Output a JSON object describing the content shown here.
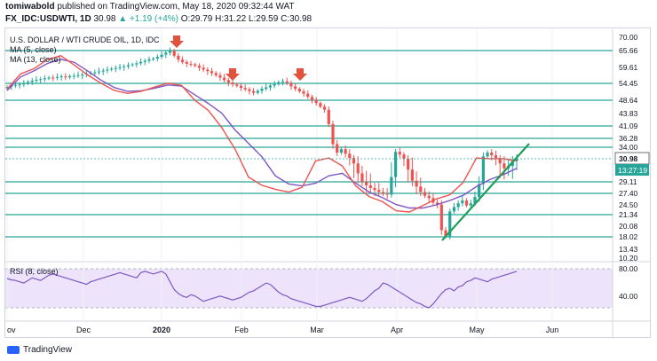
{
  "header": {
    "author": "tomiwabold",
    "published_text": "published on TradingView.com, May 18, 2020 09:32:44 WAT",
    "symbol": "FX_IDC:USDWTI, 1D",
    "last": "30.98",
    "change": "▲ +1.19 (+4%)",
    "ohlc": "O:29.79 H:31.22 L:29.59 C:30.98"
  },
  "legend": {
    "title": "U.S. DOLLAR / WTI CRUDE OIL, 1D, IDC",
    "ma5": "MA (5, close)",
    "ma13": "MA (13, close)",
    "rsi": "RSI (8, close)"
  },
  "footer": {
    "brand": "TradingView"
  },
  "colors": {
    "up": "#26a69a",
    "down": "#ef5350",
    "ma5": "#ef5350",
    "ma13": "#7e57c2",
    "level": "#4db6ac",
    "trend": "#1f9e5a",
    "arrow": "#e0533d",
    "rsi_fill": "#ede4fb",
    "rsi_line": "#7e57c2"
  },
  "chart_data": {
    "type": "candlestick",
    "price_axis_ticks": [
      "70.00",
      "65.66",
      "59.61",
      "54.45",
      "48.64",
      "43.83",
      "41.09",
      "36.28",
      "34.00",
      "30.98",
      "29.11",
      "27.40",
      "24.50",
      "21.34",
      "20.08",
      "18.02",
      "13.43",
      "10.20"
    ],
    "last_price_label": "30.98",
    "countdown_label": "13:27:19",
    "x_tick_labels": [
      "ov",
      "Dec",
      "2020",
      "Feb",
      "Mar",
      "Apr",
      "May",
      "Jun"
    ],
    "horizontal_levels": [
      65.66,
      54.45,
      48.64,
      41.09,
      36.28,
      34.0,
      29.11,
      27.4,
      21.34,
      18.02
    ],
    "rsi_ticks": [
      "80.00",
      "40.00"
    ],
    "approx_close_series": [
      53.2,
      53.6,
      53.9,
      54.1,
      54.5,
      54.9,
      55.3,
      55.6,
      55.8,
      56.1,
      56.3,
      56.2,
      56.5,
      56.7,
      56.4,
      56.8,
      56.9,
      57.1,
      57.3,
      57.6,
      57.9,
      58.0,
      58.3,
      58.6,
      58.9,
      59.2,
      59.4,
      59.7,
      60.0,
      60.4,
      60.7,
      61.1,
      61.6,
      62.0,
      62.5,
      62.8,
      63.4,
      64.2,
      64.9,
      65.6,
      63.8,
      62.4,
      61.5,
      60.9,
      60.7,
      60.2,
      59.5,
      58.9,
      58.4,
      57.8,
      57.1,
      56.3,
      55.5,
      54.7,
      54.1,
      53.6,
      52.9,
      52.4,
      51.8,
      51.2,
      51.9,
      52.6,
      53.1,
      53.7,
      54.2,
      54.8,
      55.1,
      54.6,
      53.4,
      52.6,
      51.7,
      50.9,
      49.8,
      48.7,
      47.6,
      46.3,
      45.2,
      41.5,
      34.8,
      32.6,
      33.5,
      32.3,
      31.2,
      30.6,
      29.8,
      29.1,
      28.6,
      28.2,
      27.9,
      27.6,
      27.3,
      27.1,
      29.5,
      32.8,
      32.1,
      31.0,
      30.1,
      29.2,
      28.4,
      27.6,
      26.8,
      26.2,
      25.1,
      24.6,
      19.3,
      18.1,
      22.4,
      23.8,
      24.9,
      25.6,
      24.3,
      24.9,
      26.5,
      28.8,
      31.6,
      32.6,
      31.9,
      31.2,
      30.6,
      30.2,
      30.4,
      30.8,
      30.98
    ],
    "rsi_approx": [
      65,
      63,
      62,
      60,
      58,
      62,
      66,
      64,
      62,
      66,
      70,
      72,
      70,
      68,
      66,
      64,
      62,
      60,
      58,
      56,
      60,
      62,
      64,
      66,
      68,
      70,
      72,
      74,
      72,
      70,
      68,
      66,
      74,
      76,
      74,
      72,
      74,
      76,
      72,
      60,
      48,
      42,
      38,
      36,
      40,
      38,
      34,
      30,
      32,
      34,
      36,
      38,
      36,
      34,
      32,
      34,
      36,
      40,
      44,
      46,
      50,
      54,
      58,
      56,
      50,
      44,
      40,
      38,
      34,
      32,
      30,
      28,
      26,
      24,
      22,
      22,
      24,
      26,
      28,
      30,
      32,
      34,
      36,
      34,
      32,
      30,
      34,
      40,
      46,
      50,
      58,
      56,
      52,
      48,
      44,
      40,
      36,
      32,
      28,
      26,
      22,
      20,
      26,
      34,
      42,
      48,
      50,
      46,
      52,
      54,
      60,
      62,
      66,
      64,
      62,
      60,
      64,
      66,
      68,
      70,
      72,
      74,
      76
    ],
    "ma5_approx": [
      52.5,
      57.5,
      59.2,
      62.4,
      63.8,
      60.5,
      57.2,
      54.5,
      52.0,
      51.0,
      51.7,
      53.2,
      54.5,
      53.8,
      48.6,
      45.0,
      40.5,
      33.5,
      29.5,
      28.6,
      28.0,
      27.6,
      28.3,
      30.8,
      31.2,
      30.4,
      28.5,
      26.6,
      25.3,
      22.6,
      22.2,
      24.3,
      26.0,
      27.0,
      29.0,
      31.2,
      31.0,
      31.0,
      30.8
    ],
    "ma13_approx": [
      52.0,
      56.5,
      58.5,
      61.0,
      62.5,
      61.5,
      58.5,
      55.5,
      53.0,
      51.7,
      51.9,
      52.8,
      53.9,
      53.5,
      50.5,
      47.5,
      44.0,
      39.5,
      35.0,
      31.5,
      29.6,
      28.8,
      28.5,
      28.9,
      29.6,
      29.8,
      28.9,
      27.6,
      26.3,
      24.6,
      23.5,
      23.5,
      24.5,
      25.6,
      26.9,
      28.4,
      29.3,
      29.7,
      30.2
    ]
  }
}
